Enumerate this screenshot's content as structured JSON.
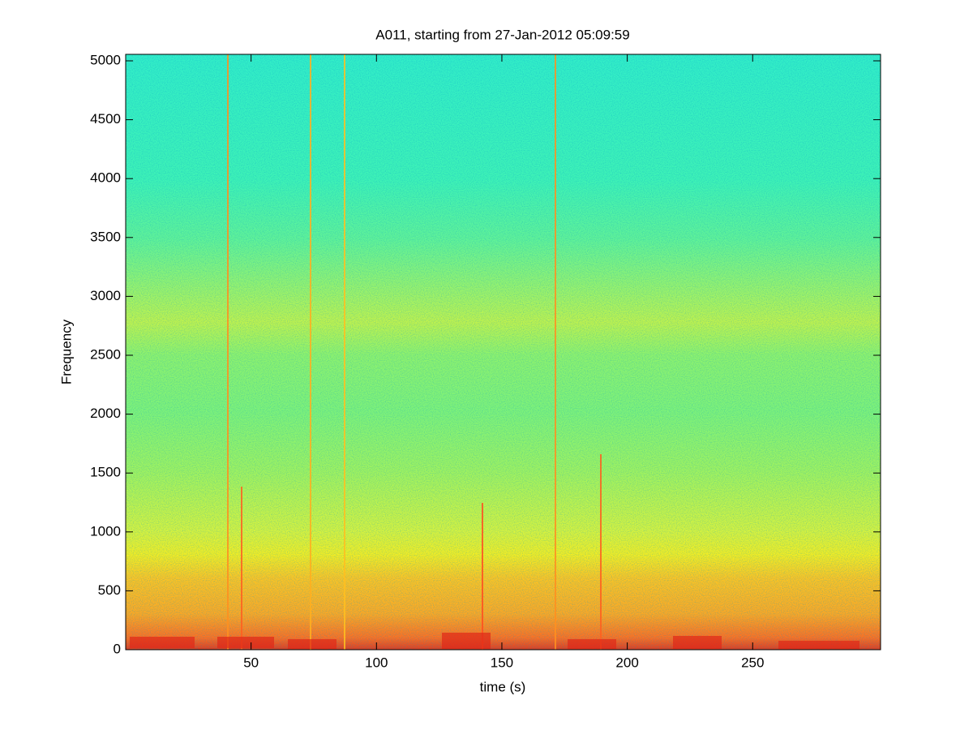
{
  "chart_data": {
    "type": "spectrogram",
    "title": "A011, starting from 27-Jan-2012 05:09:59",
    "xlabel": "time (s)",
    "ylabel": "Frequency",
    "xlim": [
      0,
      301
    ],
    "xticks": [
      50,
      100,
      150,
      200,
      250
    ],
    "ylim": [
      0,
      5055
    ],
    "yticks": [
      0,
      500,
      1000,
      1500,
      2000,
      2500,
      3000,
      3500,
      4000,
      4500,
      5000
    ],
    "grid": false
  }
}
